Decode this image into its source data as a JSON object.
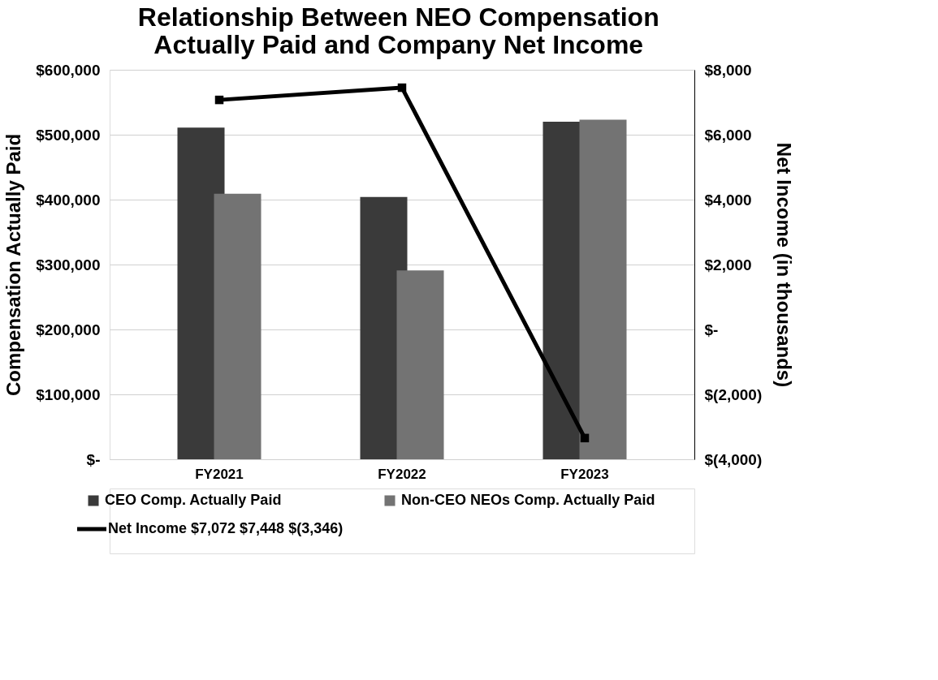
{
  "chart_data": {
    "type": "bar",
    "title": "Relationship Between NEO Compensation Actually Paid and Company Net Income",
    "categories": [
      "FY2021",
      "FY2022",
      "FY2023"
    ],
    "ylabel": "Compensation Actually Paid",
    "y2label": "Net Income (in thousands)",
    "series": [
      {
        "name": "CEO Comp. Actually Paid",
        "color": "#3a3a3a",
        "values": [
          511000,
          404000,
          520000
        ]
      },
      {
        "name": "Non-CEO NEOs Comp. Actually Paid",
        "color": "#737373",
        "values": [
          409000,
          291000,
          523000
        ]
      },
      {
        "name": "Net Income",
        "type": "line",
        "axis": "y2",
        "color": "#000000",
        "marker": "square",
        "values": [
          7072,
          7448,
          -3346
        ],
        "value_labels": [
          "$7,072",
          "$7,448",
          "$(3,346)"
        ]
      }
    ],
    "ylim": [
      0,
      600000
    ],
    "yticks": [
      {
        "value": 0,
        "label": "$-"
      },
      {
        "value": 100000,
        "label": "$100,000"
      },
      {
        "value": 200000,
        "label": "$200,000"
      },
      {
        "value": 300000,
        "label": "$300,000"
      },
      {
        "value": 400000,
        "label": "$400,000"
      },
      {
        "value": 500000,
        "label": "$500,000"
      },
      {
        "value": 600000,
        "label": "$600,000"
      }
    ],
    "y2lim": [
      -4000,
      8000
    ],
    "y2ticks": [
      {
        "value": -4000,
        "label": "$(4,000)"
      },
      {
        "value": -2000,
        "label": "$(2,000)"
      },
      {
        "value": 0,
        "label": "$-"
      },
      {
        "value": 2000,
        "label": "$2,000"
      },
      {
        "value": 4000,
        "label": "$4,000"
      },
      {
        "value": 6000,
        "label": "$6,000"
      },
      {
        "value": 8000,
        "label": "$8,000"
      }
    ],
    "grid": "y",
    "legend": "bottom"
  }
}
